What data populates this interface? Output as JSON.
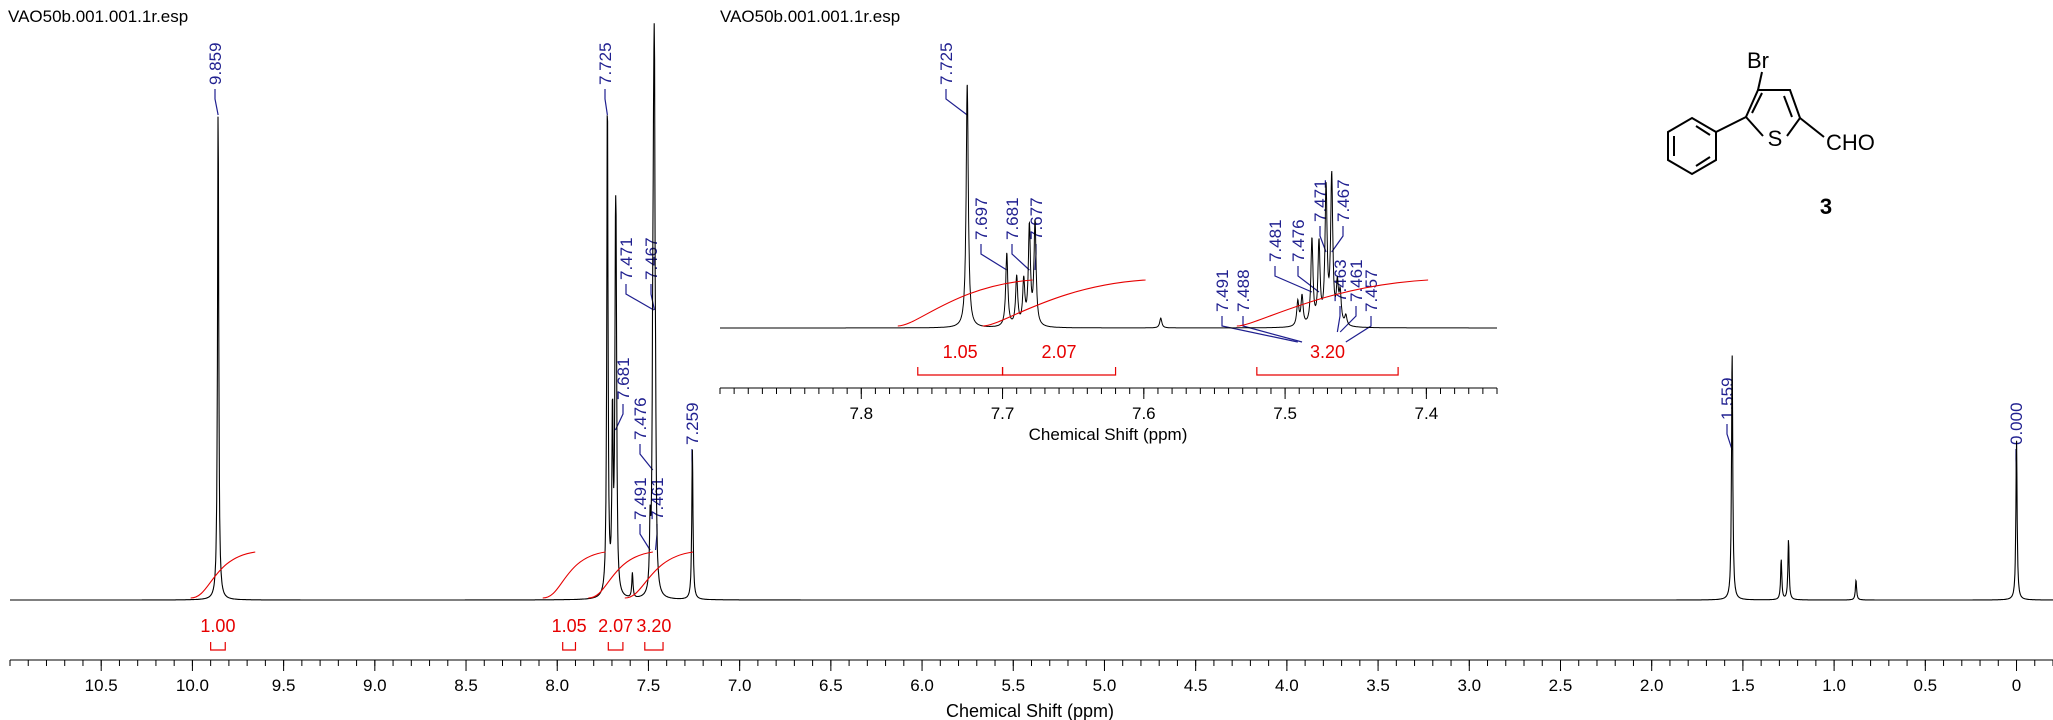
{
  "chart_data": [
    {
      "type": "line",
      "title": "VAO50b.001.001.1r.esp",
      "xlabel": "Chemical Shift (ppm)",
      "xlim": [
        11.0,
        -0.2
      ],
      "x_ticks": [
        10.5,
        10.0,
        9.5,
        9.0,
        8.5,
        8.0,
        7.5,
        7.0,
        6.5,
        6.0,
        5.5,
        5.0,
        4.5,
        4.0,
        3.5,
        3.0,
        2.5,
        2.0,
        1.5,
        1.0,
        0.5,
        0
      ],
      "x_tick_labels": [
        "10.5",
        "10.0",
        "9.5",
        "9.0",
        "8.5",
        "8.0",
        "7.5",
        "7.0",
        "6.5",
        "6.0",
        "5.5",
        "5.0",
        "4.5",
        "4.0",
        "3.5",
        "3.0",
        "2.5",
        "2.0",
        "1.5",
        "1.0",
        "0.5",
        "0"
      ],
      "peaks": [
        {
          "shift": 9.859,
          "height": 0.98
        },
        {
          "shift": 7.725,
          "height": 1.0
        },
        {
          "shift": 7.697,
          "height": 0.35
        },
        {
          "shift": 7.681,
          "height": 0.5
        },
        {
          "shift": 7.677,
          "height": 0.48
        },
        {
          "shift": 7.588,
          "height": 0.05
        },
        {
          "shift": 7.491,
          "height": 0.12
        },
        {
          "shift": 7.476,
          "height": 0.38
        },
        {
          "shift": 7.471,
          "height": 0.5
        },
        {
          "shift": 7.467,
          "height": 0.75
        },
        {
          "shift": 7.461,
          "height": 0.2
        },
        {
          "shift": 7.259,
          "height": 0.3
        },
        {
          "shift": 1.559,
          "height": 0.5
        },
        {
          "shift": 1.25,
          "height": 0.12
        },
        {
          "shift": 1.29,
          "height": 0.08
        },
        {
          "shift": 0.88,
          "height": 0.04
        },
        {
          "shift": 0.0,
          "height": 0.32
        }
      ],
      "peak_labels": [
        {
          "text": "9.859",
          "shift": 9.859
        },
        {
          "text": "7.725",
          "shift": 7.725
        },
        {
          "text": "7.681",
          "shift": 7.681
        },
        {
          "text": "7.476",
          "shift": 7.476
        },
        {
          "text": "7.491",
          "shift": 7.491
        },
        {
          "text": "7.471",
          "shift": 7.471
        },
        {
          "text": "7.467",
          "shift": 7.467
        },
        {
          "text": "7.461",
          "shift": 7.461
        },
        {
          "text": "7.259",
          "shift": 7.259
        },
        {
          "text": "1.559",
          "shift": 1.559
        },
        {
          "text": "0.000",
          "shift": 0.0
        }
      ],
      "integrals": [
        {
          "value": "1.00",
          "from": 9.9,
          "to": 9.82
        },
        {
          "value": "1.05",
          "from": 7.97,
          "to": 7.9
        },
        {
          "value": "2.07",
          "from": 7.72,
          "to": 7.64
        },
        {
          "value": "3.20",
          "from": 7.52,
          "to": 7.42
        }
      ]
    },
    {
      "type": "line",
      "title": "VAO50b.001.001.1r.esp",
      "xlabel": "Chemical Shift (ppm)",
      "xlim": [
        7.9,
        7.35
      ],
      "x_ticks": [
        7.8,
        7.7,
        7.6,
        7.5,
        7.4
      ],
      "x_tick_labels": [
        "7.8",
        "7.7",
        "7.6",
        "7.5",
        "7.4"
      ],
      "peaks": [
        {
          "shift": 7.725,
          "height": 1.0
        },
        {
          "shift": 7.697,
          "height": 0.3
        },
        {
          "shift": 7.69,
          "height": 0.2
        },
        {
          "shift": 7.685,
          "height": 0.18
        },
        {
          "shift": 7.681,
          "height": 0.4
        },
        {
          "shift": 7.677,
          "height": 0.42
        },
        {
          "shift": 7.588,
          "height": 0.04
        },
        {
          "shift": 7.491,
          "height": 0.1
        },
        {
          "shift": 7.488,
          "height": 0.12
        },
        {
          "shift": 7.481,
          "height": 0.35
        },
        {
          "shift": 7.476,
          "height": 0.33
        },
        {
          "shift": 7.471,
          "height": 0.55
        },
        {
          "shift": 7.467,
          "height": 0.6
        },
        {
          "shift": 7.463,
          "height": 0.15
        },
        {
          "shift": 7.461,
          "height": 0.12
        },
        {
          "shift": 7.457,
          "height": 0.04
        }
      ],
      "peak_labels": [
        {
          "text": "7.725",
          "shift": 7.725
        },
        {
          "text": "7.697",
          "shift": 7.697
        },
        {
          "text": "7.681",
          "shift": 7.681
        },
        {
          "text": "7.677",
          "shift": 7.677
        },
        {
          "text": "7.491",
          "shift": 7.491
        },
        {
          "text": "7.488",
          "shift": 7.488
        },
        {
          "text": "7.481",
          "shift": 7.481
        },
        {
          "text": "7.476",
          "shift": 7.476
        },
        {
          "text": "7.471",
          "shift": 7.471
        },
        {
          "text": "7.467",
          "shift": 7.467
        },
        {
          "text": "7.463",
          "shift": 7.463
        },
        {
          "text": "7.461",
          "shift": 7.461
        },
        {
          "text": "7.457",
          "shift": 7.457
        }
      ],
      "integrals": [
        {
          "value": "1.05",
          "from": 7.76,
          "to": 7.7
        },
        {
          "value": "2.07",
          "from": 7.7,
          "to": 7.62
        },
        {
          "value": "3.20",
          "from": 7.52,
          "to": 7.42
        }
      ]
    }
  ],
  "molecule": {
    "substituent_br": "Br",
    "heteroatom_s": "S",
    "group_cho": "CHO",
    "compound_number": "3"
  },
  "colors": {
    "spectrum": "#000000",
    "peak_label": "#1f1f8f",
    "integral": "#e60000"
  }
}
